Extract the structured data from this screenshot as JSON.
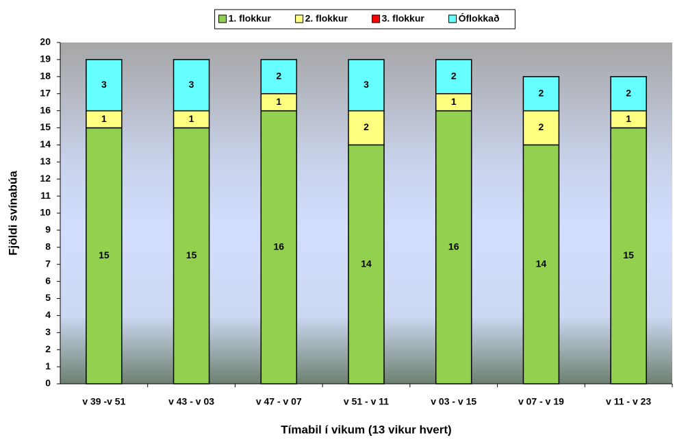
{
  "chart_data": {
    "type": "stacked_bar",
    "categories": [
      "v 39 -v  51",
      "v 43 - v 03",
      "v 47 - v 07",
      "v 51 - v 11",
      "v 03 - v 15",
      "v 07 - v 19",
      "v 11 - v 23"
    ],
    "series": [
      {
        "name": "1. flokkur",
        "color": "#92d050",
        "values": [
          15,
          15,
          16,
          14,
          16,
          14,
          15
        ]
      },
      {
        "name": "2. flokkur",
        "color": "#ffff80",
        "values": [
          1,
          1,
          1,
          2,
          1,
          2,
          1
        ]
      },
      {
        "name": "3. flokkur",
        "color": "#ff0000",
        "values": [
          0,
          0,
          0,
          0,
          0,
          0,
          0
        ]
      },
      {
        "name": "Óflokkað",
        "color": "#66ffff",
        "values": [
          3,
          3,
          2,
          3,
          2,
          2,
          2
        ]
      }
    ],
    "x_label": "Tímabil í vikum (13 vikur hvert)",
    "y_label": "Fjöldi svínabúa",
    "ylim": [
      0,
      20
    ],
    "yticks": [
      0,
      1,
      2,
      3,
      4,
      5,
      6,
      7,
      8,
      9,
      10,
      11,
      12,
      13,
      14,
      15,
      16,
      17,
      18,
      19,
      20
    ],
    "legend": "top"
  }
}
